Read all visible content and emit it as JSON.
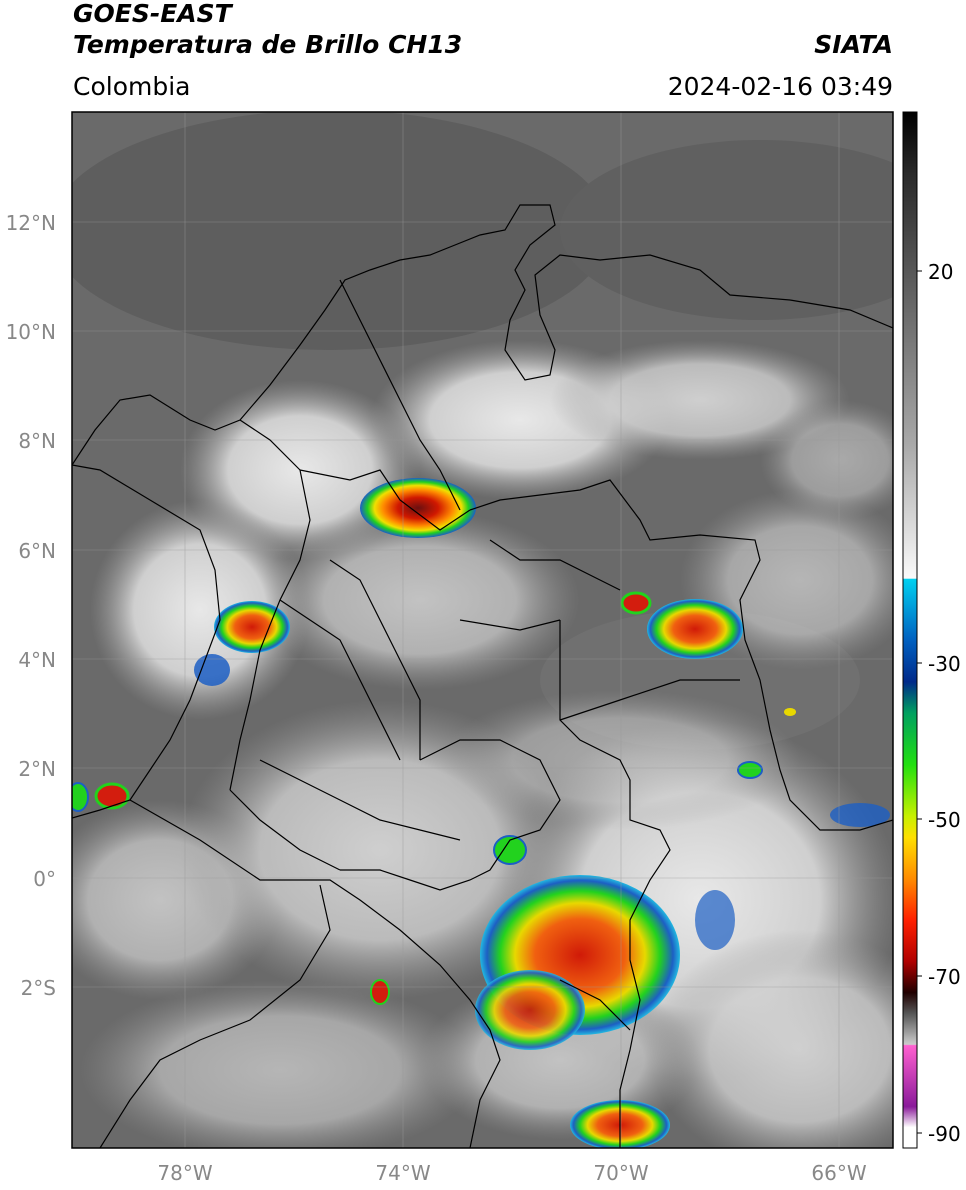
{
  "header": {
    "satellite": "GOES-EAST",
    "product": "Temperatura de Brillo CH13",
    "region": "Colombia",
    "organization": "SIATA",
    "timestamp": "2024-02-16 03:49"
  },
  "map": {
    "lat_labels": [
      "12°N",
      "10°N",
      "8°N",
      "6°N",
      "4°N",
      "2°N",
      "0°",
      "2°S"
    ],
    "lon_labels": [
      "78°W",
      "74°W",
      "70°W",
      "66°W"
    ]
  },
  "colorbar": {
    "labels": [
      "20",
      "-30",
      "-50",
      "-70",
      "-90"
    ]
  },
  "colors": {
    "warm_cloud": "#6a6a6a",
    "cold_cloud": "#e4e4e4",
    "convective_red": "#d31d0e",
    "convective_green": "#22d21e",
    "convective_blue": "#1d5fc4"
  }
}
